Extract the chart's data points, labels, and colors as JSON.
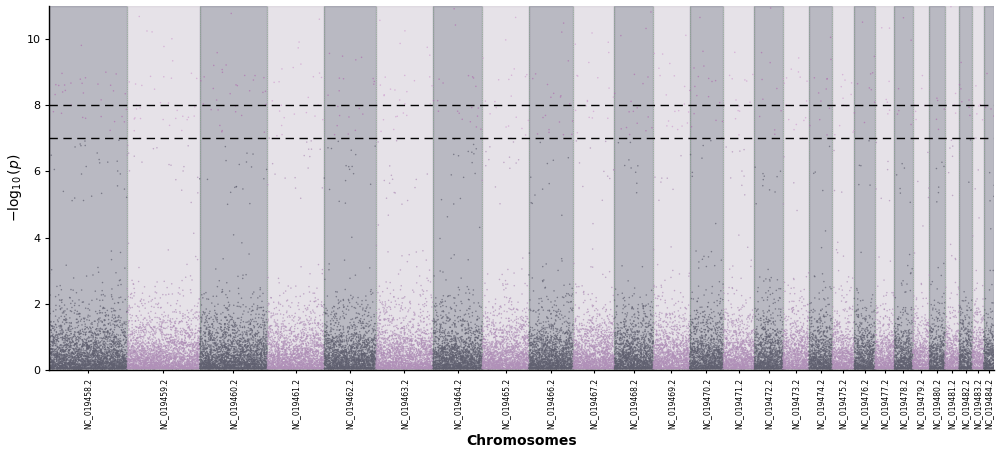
{
  "chromosomes": [
    "NC_019458.2",
    "NC_019459.2",
    "NC_019460.2",
    "NC_019461.2",
    "NC_019462.2",
    "NC_019463.2",
    "NC_019464.2",
    "NC_019465.2",
    "NC_019466.2",
    "NC_019467.2",
    "NC_019468.2",
    "NC_019469.2",
    "NC_019470.2",
    "NC_019471.2",
    "NC_019472.2",
    "NC_019473.2",
    "NC_019474.2",
    "NC_019475.2",
    "NC_019476.2",
    "NC_019477.2",
    "NC_019478.2",
    "NC_019479.2",
    "NC_019480.2",
    "NC_019481.2",
    "NC_019482.2",
    "NC_019483.2",
    "NC_019484.2"
  ],
  "snps_per_chrom": [
    3000,
    2800,
    2600,
    2200,
    2000,
    2200,
    1900,
    1800,
    1700,
    1600,
    1500,
    1400,
    1300,
    1200,
    1100,
    1000,
    900,
    850,
    800,
    750,
    700,
    650,
    600,
    550,
    500,
    450,
    400
  ],
  "color_odd": "#606070",
  "color_even": "#b090b8",
  "color_highlight_odd": "#b070b0",
  "color_highlight_even": "#d0a0d0",
  "bg_dark": "#808090",
  "bg_light": "#c8c0cc",
  "threshold_line1": 7.0,
  "threshold_line2": 8.0,
  "ylabel": "$-\\log_{10}(p)$",
  "xlabel": "Chromosomes",
  "ylim_max": 11,
  "background_color": "#ffffff",
  "vline_color": "#80b080",
  "seed": 12345
}
